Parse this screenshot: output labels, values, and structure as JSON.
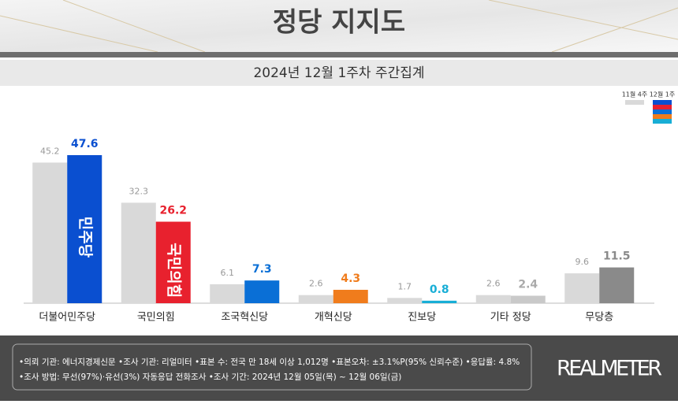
{
  "chart_data": {
    "type": "bar",
    "title": "정당 지지도",
    "subtitle": "2024년 12월 1주차 주간집계",
    "categories": [
      "더불어민주당",
      "국민의힘",
      "조국혁신당",
      "개혁신당",
      "진보당",
      "기타 정당",
      "무당층"
    ],
    "series": [
      {
        "name": "11월 4주",
        "color": "#d9d9d9",
        "values": [
          45.2,
          32.3,
          6.1,
          2.6,
          1.7,
          2.6,
          9.6
        ]
      },
      {
        "name": "12월 1주",
        "colors": [
          "#0a4fd0",
          "#e8212e",
          "#0a6fd6",
          "#f07c1c",
          "#18aed6",
          "#c9c9c9",
          "#8a8a8a"
        ],
        "values": [
          47.6,
          26.2,
          7.3,
          4.3,
          0.8,
          2.4,
          11.5
        ]
      }
    ],
    "bar_logos": [
      "민주당",
      "국민의힘"
    ],
    "notes": [
      "•의뢰 기관: 에너지경제신문 •조사 기관: 리얼미터 •표본 수: 전국 만 18세 이상 1,012명 •표본오차: ±3.1%P(95% 신뢰수준) •응답률: 4.8%",
      "•조사 방법: 무선(97%)·유선(3%) 자동응답 전화조사 •조사 기간: 2024년 12월 05일(목) ~ 12월 06일(금)"
    ],
    "source": "REALMETER"
  }
}
